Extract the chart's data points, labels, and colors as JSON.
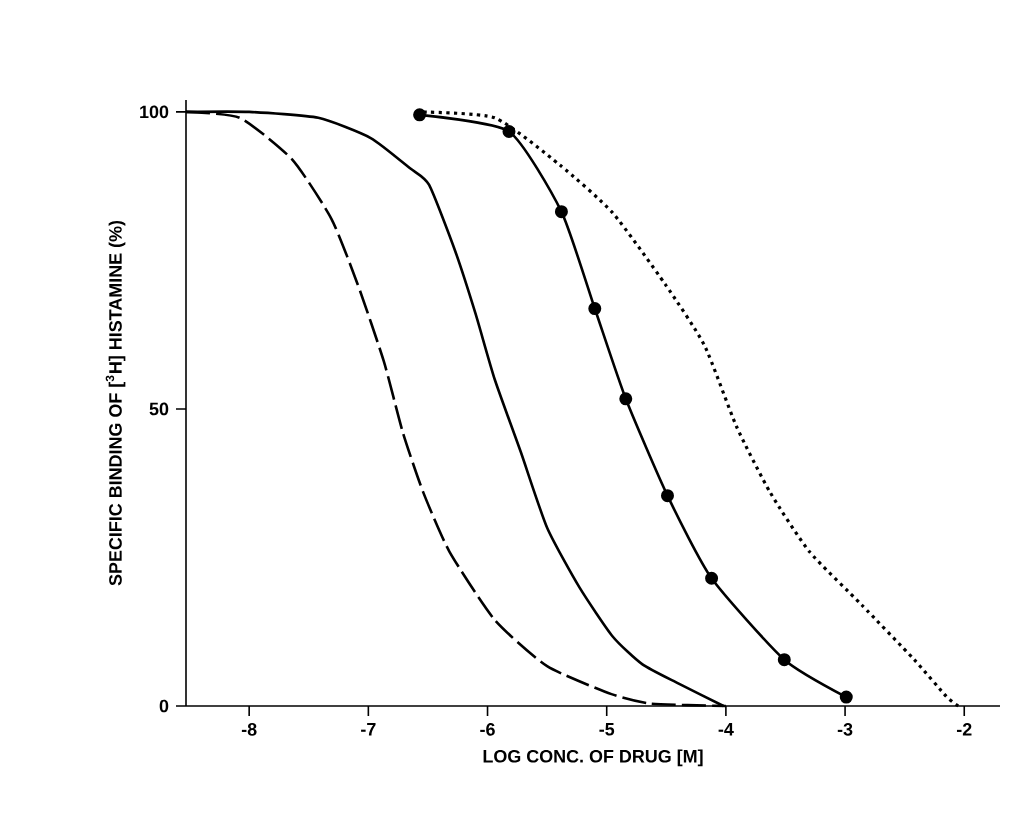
{
  "chart_data": {
    "type": "line",
    "xlabel": "LOG CONC. OF DRUG [M]",
    "ylabel": "SPECIFIC BINDING OF [$^{3}$H] HISTAMINE (%)",
    "xlim": [
      -8.53,
      -1.7
    ],
    "ylim": [
      0,
      102
    ],
    "xticks": [
      -8,
      -7,
      -6,
      -5,
      -4,
      -3,
      -2
    ],
    "yticks": [
      0,
      50,
      100
    ],
    "grid": false,
    "series": [
      {
        "color": "#000000",
        "line_style": "dashed",
        "marker": "none",
        "x": [
          -8.53,
          -8.08,
          -7.64,
          -7.31,
          -7.09,
          -6.87,
          -6.71,
          -6.54,
          -6.32,
          -5.94,
          -5.5,
          -4.96,
          -4.63,
          -4.0
        ],
        "values": [
          100,
          99,
          92,
          82,
          71,
          58,
          46,
          36,
          26,
          14.5,
          6.7,
          2,
          0.4,
          0
        ]
      },
      {
        "color": "#000000",
        "line_style": "solid",
        "marker": "none",
        "x": [
          -8.53,
          -8.0,
          -7.42,
          -6.98,
          -6.65,
          -6.49,
          -6.27,
          -6.1,
          -5.94,
          -5.72,
          -5.5,
          -5.23,
          -4.95,
          -4.7,
          -4.4,
          -4.02
        ],
        "values": [
          100,
          100,
          99,
          95.6,
          90.5,
          87.7,
          76.5,
          66,
          55,
          42.7,
          30,
          20,
          11.7,
          7,
          3.8,
          0
        ]
      },
      {
        "color": "#000000",
        "line_style": "solid",
        "marker": "circle",
        "x": [
          -6.57,
          -5.82,
          -5.38,
          -5.1,
          -4.84,
          -4.49,
          -4.12,
          -3.51,
          -2.99
        ],
        "values": [
          99.5,
          96.7,
          83.2,
          66.9,
          51.7,
          35.4,
          21.5,
          7.8,
          1.5
        ]
      },
      {
        "color": "#000000",
        "line_style": "dotted",
        "marker": "none",
        "x": [
          -6.6,
          -5.94,
          -5.39,
          -4.95,
          -4.51,
          -4.18,
          -3.91,
          -3.63,
          -3.3,
          -2.86,
          -2.42,
          -2.15,
          -2.05
        ],
        "values": [
          100,
          99,
          91,
          83,
          71,
          60.7,
          47,
          36,
          26,
          17,
          7.8,
          1.6,
          0
        ]
      }
    ]
  }
}
